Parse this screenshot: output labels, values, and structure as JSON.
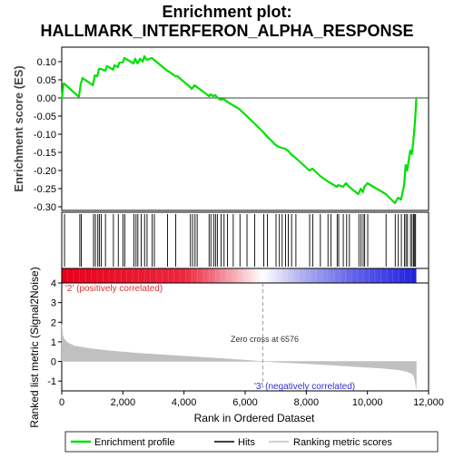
{
  "chart_data": {
    "type": "line",
    "title_lines": [
      "Enrichment plot:",
      "HALLMARK_INTERFERON_ALPHA_RESPONSE"
    ],
    "colors": {
      "enrichment_line": "#00e000",
      "hits": "#000000",
      "metric_fill": "#c0c0c0",
      "positive_band": "#e8001a",
      "negative_band": "#2020e0",
      "neutral_band": "#ffffff",
      "zero_cross": "#999999",
      "positive_label": "#e03030",
      "negative_label": "#3030d0"
    },
    "x_axis": {
      "label": "Rank in Ordered Dataset",
      "range": [
        0,
        12000
      ],
      "ticks": [
        0,
        2000,
        4000,
        6000,
        8000,
        10000,
        12000
      ],
      "tick_labels": [
        "0",
        "2,000",
        "4,000",
        "6,000",
        "8,000",
        "10,000",
        "12,000"
      ],
      "n_genes": 11600
    },
    "es_panel": {
      "ylabel": "Enrichment score (ES)",
      "ylim": [
        -0.31,
        0.14
      ],
      "ticks": [
        0.1,
        0.05,
        0.0,
        -0.05,
        -0.1,
        -0.15,
        -0.2,
        -0.25,
        -0.3
      ],
      "tick_labels": [
        "0.10",
        "0.05",
        "0.00",
        "-0.05",
        "-0.10",
        "-0.15",
        "-0.20",
        "-0.25",
        "-0.30"
      ],
      "series": {
        "name": "Enrichment profile",
        "x": [
          0,
          60,
          100,
          560,
          620,
          680,
          1020,
          1080,
          1160,
          1220,
          1280,
          1430,
          1480,
          1680,
          1720,
          1840,
          1880,
          2000,
          2050,
          2350,
          2400,
          2480,
          2560,
          2650,
          2700,
          2780,
          2950,
          3020,
          3450,
          3500,
          3720,
          3780,
          4200,
          4250,
          4350,
          4420,
          4820,
          4870,
          4960,
          5020,
          5100,
          5200,
          5300,
          5400,
          5600,
          5800,
          6050,
          6300,
          6600,
          6700,
          7000,
          7100,
          7300,
          7400,
          7500,
          7650,
          8100,
          8200,
          8450,
          8700,
          8800,
          9000,
          9050,
          9200,
          9300,
          9400,
          9700,
          9780,
          9850,
          9900,
          10000,
          10600,
          10900,
          11000,
          11100,
          11200,
          11250,
          11300,
          11400,
          11450,
          11500,
          11530,
          11560,
          11580,
          11600
        ],
        "y": [
          -0.005,
          0.04,
          0.038,
          0.003,
          0.038,
          0.055,
          0.035,
          0.062,
          0.06,
          0.08,
          0.08,
          0.075,
          0.088,
          0.078,
          0.09,
          0.085,
          0.097,
          0.098,
          0.11,
          0.095,
          0.108,
          0.095,
          0.108,
          0.1,
          0.115,
          0.105,
          0.11,
          0.105,
          0.075,
          0.073,
          0.06,
          0.06,
          0.03,
          0.025,
          0.035,
          0.03,
          0.005,
          0.01,
          0.005,
          0.008,
          0.0,
          -0.005,
          -0.003,
          -0.01,
          -0.02,
          -0.03,
          -0.05,
          -0.07,
          -0.095,
          -0.105,
          -0.13,
          -0.135,
          -0.14,
          -0.145,
          -0.155,
          -0.165,
          -0.2,
          -0.195,
          -0.215,
          -0.23,
          -0.235,
          -0.245,
          -0.24,
          -0.245,
          -0.235,
          -0.245,
          -0.265,
          -0.25,
          -0.26,
          -0.245,
          -0.235,
          -0.265,
          -0.29,
          -0.275,
          -0.28,
          -0.24,
          -0.185,
          -0.2,
          -0.145,
          -0.155,
          -0.12,
          -0.09,
          -0.06,
          -0.03,
          0.0
        ]
      }
    },
    "hits": {
      "name": "Hits",
      "positions": [
        90,
        590,
        640,
        1040,
        1100,
        1180,
        1230,
        1290,
        1430,
        1690,
        1850,
        2000,
        2060,
        2360,
        2430,
        2490,
        2600,
        2710,
        2790,
        2960,
        3030,
        3460,
        3730,
        4210,
        4280,
        4360,
        4430,
        4820,
        4880,
        4970,
        5030,
        5090,
        5210,
        5310,
        5420,
        5610,
        5830,
        6060,
        6310,
        6610,
        6730,
        7010,
        7120,
        7210,
        7320,
        7410,
        7520,
        7660,
        8110,
        8210,
        8460,
        8710,
        8810,
        9010,
        9060,
        9210,
        9320,
        9410,
        9720,
        9790,
        9860,
        9910,
        10010,
        10610,
        10910,
        11010,
        11110,
        11210,
        11260,
        11310,
        11410,
        11460,
        11510,
        11545,
        11575
      ]
    },
    "metric_panel": {
      "ylabel": "Ranked list metric (Signal2Noise)",
      "ylim": [
        -1.5,
        4.0
      ],
      "ticks": [
        4,
        3,
        2,
        1,
        0,
        -1
      ],
      "tick_labels": [
        "4",
        "3",
        "2",
        "1",
        "0",
        "-1"
      ],
      "fill_name": "Ranking metric scores",
      "profile_x": [
        0,
        30,
        80,
        200,
        400,
        800,
        1500,
        2500,
        3500,
        4500,
        5500,
        6576,
        7500,
        8500,
        9500,
        10500,
        11000,
        11300,
        11450,
        11520,
        11560,
        11600
      ],
      "profile_y": [
        1.9,
        1.35,
        1.15,
        0.95,
        0.8,
        0.68,
        0.55,
        0.42,
        0.32,
        0.22,
        0.12,
        0.0,
        -0.07,
        -0.15,
        -0.25,
        -0.35,
        -0.42,
        -0.52,
        -0.62,
        -0.75,
        -1.0,
        -1.4
      ],
      "zero_cross": 6576,
      "zero_cross_label": "Zero cross at 6576",
      "positive_label": "'2' (positively correlated)",
      "negative_label": "'3' (negatively correlated)"
    },
    "legend": {
      "placement": "bottom",
      "entries": [
        "Enrichment profile",
        "Hits",
        "Ranking metric scores"
      ]
    }
  }
}
